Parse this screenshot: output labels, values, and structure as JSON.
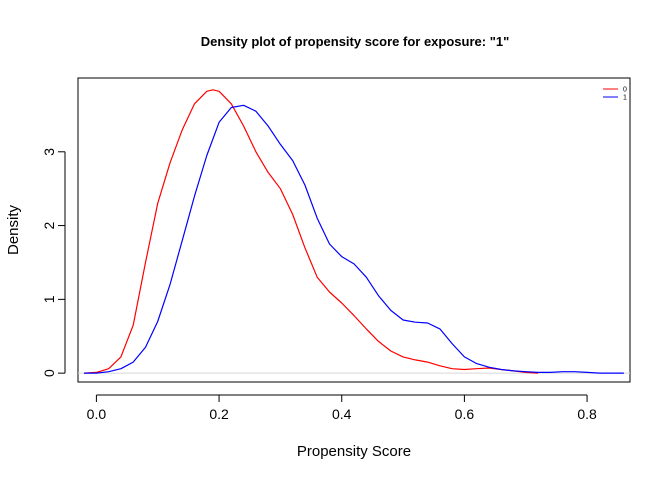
{
  "chart_data": {
    "type": "line",
    "title": "Density plot of propensity score for exposure: \"1\"",
    "xlabel": "Propensity Score",
    "ylabel": "Density",
    "xlim": [
      -0.03,
      0.87
    ],
    "ylim": [
      -0.12,
      4.0
    ],
    "xticks": [
      0.0,
      0.2,
      0.4,
      0.6,
      0.8
    ],
    "xtick_labels": [
      "0.0",
      "0.2",
      "0.4",
      "0.6",
      "0.8"
    ],
    "yticks": [
      0,
      1,
      2,
      3
    ],
    "ytick_labels": [
      "0",
      "1",
      "2",
      "3"
    ],
    "legend_position": "top-right",
    "grid": false,
    "series": [
      {
        "name": "0",
        "color": "#FF0000",
        "x": [
          -0.02,
          0.0,
          0.02,
          0.04,
          0.06,
          0.08,
          0.1,
          0.12,
          0.14,
          0.16,
          0.18,
          0.19,
          0.2,
          0.22,
          0.24,
          0.26,
          0.28,
          0.3,
          0.32,
          0.34,
          0.36,
          0.38,
          0.4,
          0.42,
          0.44,
          0.46,
          0.48,
          0.5,
          0.52,
          0.54,
          0.56,
          0.58,
          0.6,
          0.62,
          0.64,
          0.66,
          0.68,
          0.7,
          0.72
        ],
        "y": [
          0.0,
          0.01,
          0.06,
          0.22,
          0.65,
          1.5,
          2.3,
          2.85,
          3.3,
          3.65,
          3.82,
          3.84,
          3.82,
          3.65,
          3.35,
          3.0,
          2.72,
          2.5,
          2.15,
          1.7,
          1.3,
          1.1,
          0.95,
          0.78,
          0.6,
          0.43,
          0.3,
          0.22,
          0.18,
          0.15,
          0.1,
          0.06,
          0.05,
          0.06,
          0.07,
          0.05,
          0.03,
          0.01,
          0.0
        ]
      },
      {
        "name": "1",
        "color": "#0000FF",
        "x": [
          -0.02,
          0.0,
          0.02,
          0.04,
          0.06,
          0.08,
          0.1,
          0.12,
          0.14,
          0.16,
          0.18,
          0.2,
          0.22,
          0.24,
          0.26,
          0.28,
          0.3,
          0.32,
          0.34,
          0.36,
          0.38,
          0.4,
          0.42,
          0.44,
          0.46,
          0.48,
          0.5,
          0.52,
          0.54,
          0.56,
          0.58,
          0.6,
          0.62,
          0.64,
          0.66,
          0.68,
          0.7,
          0.72,
          0.74,
          0.76,
          0.78,
          0.8,
          0.82,
          0.86
        ],
        "y": [
          0.0,
          0.0,
          0.02,
          0.06,
          0.15,
          0.35,
          0.7,
          1.2,
          1.8,
          2.4,
          2.95,
          3.4,
          3.6,
          3.63,
          3.55,
          3.35,
          3.1,
          2.88,
          2.55,
          2.1,
          1.75,
          1.58,
          1.48,
          1.3,
          1.05,
          0.85,
          0.72,
          0.69,
          0.68,
          0.6,
          0.4,
          0.22,
          0.13,
          0.08,
          0.05,
          0.03,
          0.02,
          0.01,
          0.01,
          0.02,
          0.02,
          0.01,
          0.0,
          0.0
        ]
      }
    ]
  }
}
